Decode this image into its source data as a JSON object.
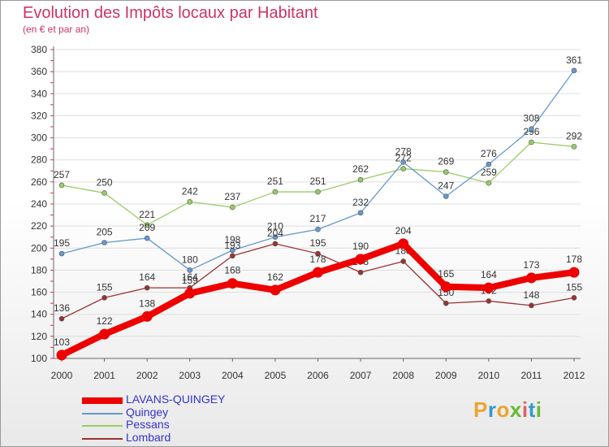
{
  "header": {
    "title": "Evolution des Impôts locaux par Habitant",
    "subtitle": "(en € et par an)"
  },
  "logo": {
    "text": "Proxiti",
    "colors": [
      "#e9a531",
      "#3399cc",
      "#e9a531",
      "#66bb33",
      "#e06060",
      "#3399cc",
      "#66bb33"
    ]
  },
  "chart_data": {
    "type": "line",
    "title": "Evolution des Impôts locaux par Habitant",
    "subtitle": "(en € et par an)",
    "x": [
      2000,
      2001,
      2002,
      2003,
      2004,
      2005,
      2006,
      2007,
      2008,
      2009,
      2010,
      2011,
      2012
    ],
    "ylim": [
      100,
      380
    ],
    "yticks": [
      100,
      120,
      140,
      160,
      180,
      200,
      220,
      240,
      260,
      280,
      300,
      320,
      340,
      360,
      380
    ],
    "grid": true,
    "legend_position": "bottom-left",
    "series": [
      {
        "name": "Pessans",
        "color": "#99cc66",
        "values": [
          257,
          250,
          221,
          242,
          237,
          251,
          251,
          262,
          272,
          269,
          259,
          296,
          292
        ]
      },
      {
        "name": "Quingey",
        "color": "#6699cc",
        "values": [
          195,
          205,
          209,
          180,
          198,
          210,
          217,
          232,
          278,
          247,
          276,
          308,
          361
        ]
      },
      {
        "name": "Lombard",
        "color": "#993333",
        "values": [
          136,
          155,
          164,
          164,
          193,
          204,
          195,
          178,
          188,
          150,
          152,
          148,
          155
        ]
      },
      {
        "name": "LAVANS-QUINGEY",
        "color": "#ee0000",
        "values": [
          103,
          122,
          138,
          159,
          168,
          162,
          178,
          190,
          204,
          165,
          164,
          173,
          178
        ]
      }
    ],
    "legend": [
      "LAVANS-QUINGEY",
      "Quingey",
      "Pessans",
      "Lombard"
    ]
  }
}
